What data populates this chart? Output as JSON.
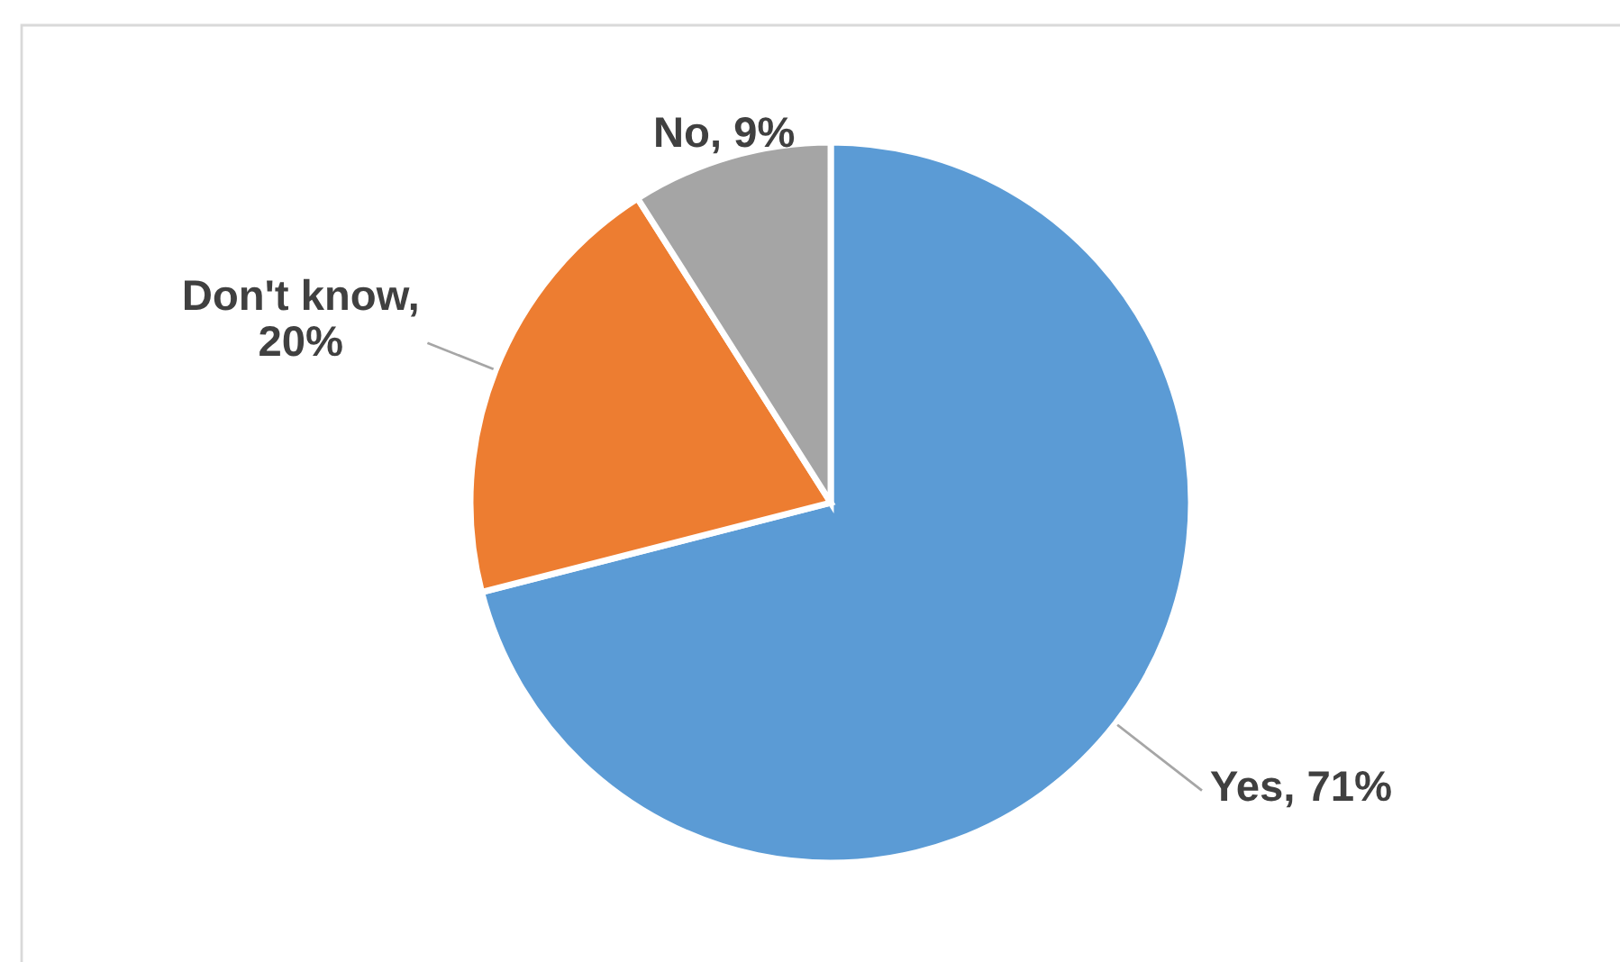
{
  "chart_data": {
    "type": "pie",
    "categories": [
      "Yes",
      "Don't know",
      "No"
    ],
    "values": [
      71,
      20,
      9
    ],
    "colors": [
      "#5b9bd5",
      "#ed7d31",
      "#a5a5a5"
    ],
    "value_labels": [
      ", 71%",
      ",\n20%",
      ", 9%"
    ]
  }
}
